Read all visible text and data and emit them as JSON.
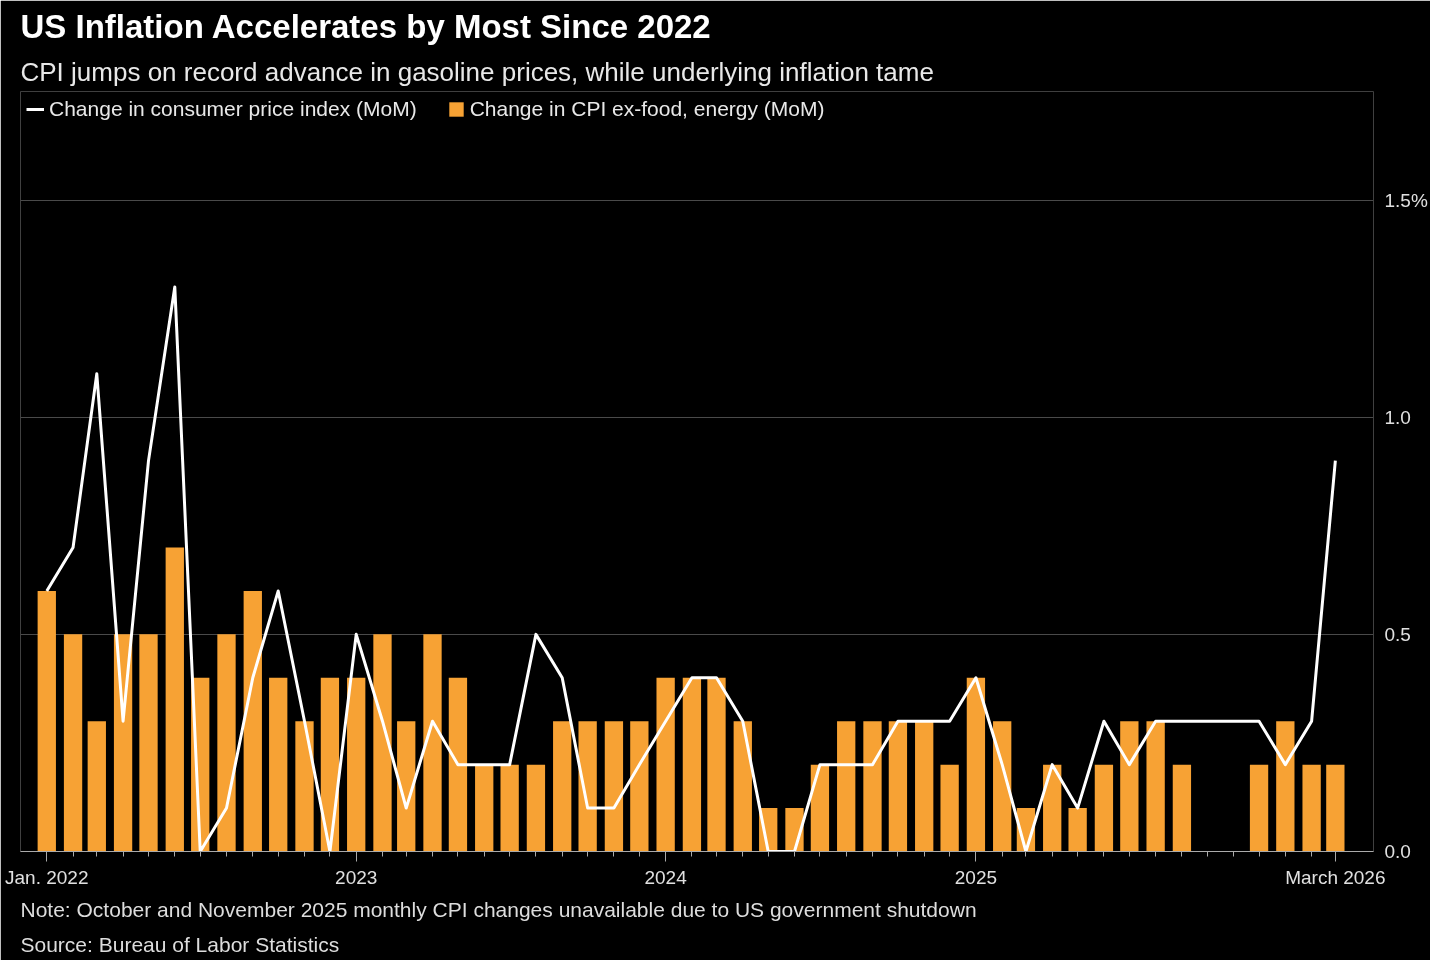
{
  "chart_data": {
    "type": "bar",
    "title": "US Inflation Accelerates by Most Since 2022",
    "subtitle": "CPI jumps on record advance in gasoline prices, while underlying inflation tame",
    "x": [
      "2022-01",
      "2022-02",
      "2022-03",
      "2022-04",
      "2022-05",
      "2022-06",
      "2022-07",
      "2022-08",
      "2022-09",
      "2022-10",
      "2022-11",
      "2022-12",
      "2023-01",
      "2023-02",
      "2023-03",
      "2023-04",
      "2023-05",
      "2023-06",
      "2023-07",
      "2023-08",
      "2023-09",
      "2023-10",
      "2023-11",
      "2023-12",
      "2024-01",
      "2024-02",
      "2024-03",
      "2024-04",
      "2024-05",
      "2024-06",
      "2024-07",
      "2024-08",
      "2024-09",
      "2024-10",
      "2024-11",
      "2024-12",
      "2025-01",
      "2025-02",
      "2025-03",
      "2025-04",
      "2025-05",
      "2025-06",
      "2025-07",
      "2025-08",
      "2025-09",
      "2025-10",
      "2025-11",
      "2025-12",
      "2026-01",
      "2026-02",
      "2026-03"
    ],
    "series": [
      {
        "name": "Change in CPI ex-food, energy (MoM)",
        "color": "#f7a234",
        "values": [
          0.6,
          0.5,
          0.3,
          0.5,
          0.5,
          0.7,
          0.4,
          0.5,
          0.6,
          0.4,
          0.3,
          0.4,
          0.4,
          0.5,
          0.3,
          0.5,
          0.4,
          0.2,
          0.2,
          0.2,
          0.3,
          0.3,
          0.3,
          0.3,
          0.4,
          0.4,
          0.4,
          0.3,
          0.1,
          0.1,
          0.2,
          0.3,
          0.3,
          0.3,
          0.3,
          0.2,
          0.4,
          0.3,
          0.1,
          0.2,
          0.1,
          0.2,
          0.3,
          0.3,
          0.2,
          null,
          null,
          0.2,
          0.3,
          0.2,
          0.2
        ]
      },
      {
        "name": "Change in consumer price index (MoM)",
        "type": "line",
        "color": "#ffffff",
        "values": [
          0.6,
          0.7,
          1.1,
          0.3,
          0.9,
          1.3,
          0.0,
          0.1,
          0.4,
          0.6,
          0.3,
          0.0,
          0.5,
          0.3,
          0.1,
          0.3,
          0.2,
          0.2,
          0.2,
          0.5,
          0.4,
          0.1,
          0.1,
          0.2,
          0.3,
          0.4,
          0.4,
          0.3,
          0.0,
          0.0,
          0.2,
          0.2,
          0.2,
          0.3,
          0.3,
          0.3,
          0.4,
          0.2,
          0.0,
          0.2,
          0.1,
          0.3,
          0.2,
          0.3,
          0.3,
          null,
          null,
          0.3,
          0.2,
          0.3,
          0.9
        ]
      }
    ],
    "xlim": [
      "2021-12-01",
      "2026-04-15"
    ],
    "xticks": [
      {
        "value": "2022-01",
        "label": "Jan. 2022"
      },
      {
        "value": "2023-01",
        "label": "2023"
      },
      {
        "value": "2024-01",
        "label": "2024"
      },
      {
        "value": "2025-01",
        "label": "2025"
      },
      {
        "value": "2026-03",
        "label": "March 2026"
      }
    ],
    "ylim": [
      0,
      1.75
    ],
    "yticks": [
      {
        "value": 0,
        "label": "0.0"
      },
      0.5,
      {
        "value": 1,
        "label": "1.0"
      },
      {
        "value": 1.5,
        "label": "1.5%"
      }
    ],
    "grid": "y",
    "legend": "top left",
    "annotations": [
      "Note: October and November 2025 monthly CPI changes unavailable due to US government shutdown",
      "Source: Bureau of Labor Statistics"
    ]
  }
}
